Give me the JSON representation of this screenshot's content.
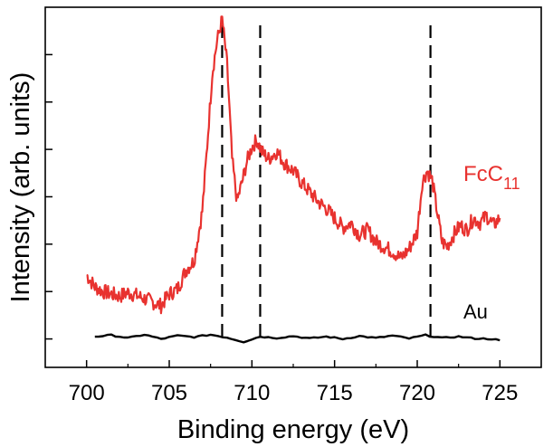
{
  "chart_data": {
    "type": "line",
    "title": "",
    "xlabel": "Binding energy (eV)",
    "ylabel": "Intensity (arb. units)",
    "xlim": [
      697.5,
      727.5
    ],
    "ylim": [
      -0.6,
      7.0
    ],
    "x_ticks": [
      700,
      705,
      710,
      715,
      720,
      725
    ],
    "x_tick_labels": [
      "700",
      "705",
      "710",
      "715",
      "720",
      "725"
    ],
    "y_ticks": [
      0,
      1,
      2,
      3,
      4,
      5,
      6
    ],
    "y_tick_labels_visible": false,
    "reference_lines_x": [
      708.2,
      710.5,
      720.8
    ],
    "series": [
      {
        "name": "FcC11",
        "label_main": "FcC",
        "label_sub": "11",
        "color": "#e8322f",
        "points": [
          [
            700.0,
            1.35
          ],
          [
            700.5,
            1.1
          ],
          [
            701.0,
            1.0
          ],
          [
            701.5,
            0.95
          ],
          [
            702.0,
            0.9
          ],
          [
            702.5,
            0.98
          ],
          [
            703.0,
            0.92
          ],
          [
            703.5,
            0.85
          ],
          [
            704.0,
            0.78
          ],
          [
            704.5,
            0.7
          ],
          [
            705.0,
            0.95
          ],
          [
            705.5,
            1.05
          ],
          [
            706.0,
            1.45
          ],
          [
            706.5,
            1.65
          ],
          [
            707.0,
            2.7
          ],
          [
            707.3,
            4.1
          ],
          [
            707.6,
            5.6
          ],
          [
            707.9,
            6.3
          ],
          [
            708.2,
            6.75
          ],
          [
            708.5,
            5.8
          ],
          [
            708.8,
            3.8
          ],
          [
            709.1,
            2.9
          ],
          [
            709.4,
            3.3
          ],
          [
            709.7,
            3.75
          ],
          [
            710.0,
            4.05
          ],
          [
            710.3,
            4.2
          ],
          [
            710.6,
            3.95
          ],
          [
            711.0,
            3.8
          ],
          [
            711.5,
            3.95
          ],
          [
            712.0,
            3.7
          ],
          [
            712.5,
            3.55
          ],
          [
            713.0,
            3.3
          ],
          [
            713.5,
            3.1
          ],
          [
            714.0,
            2.9
          ],
          [
            714.5,
            2.75
          ],
          [
            715.0,
            2.55
          ],
          [
            715.5,
            2.35
          ],
          [
            716.0,
            2.45
          ],
          [
            716.5,
            2.2
          ],
          [
            717.0,
            2.3
          ],
          [
            717.5,
            2.05
          ],
          [
            718.0,
            1.95
          ],
          [
            718.5,
            1.85
          ],
          [
            719.0,
            1.7
          ],
          [
            719.5,
            1.9
          ],
          [
            720.0,
            2.25
          ],
          [
            720.3,
            3.3
          ],
          [
            720.6,
            3.55
          ],
          [
            720.9,
            3.35
          ],
          [
            721.2,
            2.7
          ],
          [
            721.5,
            2.05
          ],
          [
            721.8,
            1.95
          ],
          [
            722.2,
            2.2
          ],
          [
            722.6,
            2.4
          ],
          [
            723.0,
            2.3
          ],
          [
            723.4,
            2.55
          ],
          [
            723.8,
            2.45
          ],
          [
            724.2,
            2.6
          ],
          [
            724.6,
            2.4
          ],
          [
            725.0,
            2.55
          ]
        ]
      },
      {
        "name": "Au",
        "label_main": "Au",
        "label_sub": "",
        "color": "#000000",
        "points": [
          [
            700.5,
            0.05
          ],
          [
            701.5,
            0.08
          ],
          [
            702.5,
            0.02
          ],
          [
            703.5,
            0.09
          ],
          [
            704.5,
            0.0
          ],
          [
            705.5,
            0.07
          ],
          [
            706.5,
            0.04
          ],
          [
            707.5,
            0.09
          ],
          [
            708.5,
            0.03
          ],
          [
            709.5,
            -0.06
          ],
          [
            710.5,
            0.05
          ],
          [
            711.5,
            0.02
          ],
          [
            712.5,
            0.06
          ],
          [
            713.5,
            0.01
          ],
          [
            714.5,
            0.05
          ],
          [
            715.5,
            0.0
          ],
          [
            716.5,
            0.06
          ],
          [
            717.5,
            0.02
          ],
          [
            718.5,
            0.07
          ],
          [
            719.5,
            0.01
          ],
          [
            720.5,
            0.08
          ],
          [
            721.5,
            0.02
          ],
          [
            722.5,
            0.05
          ],
          [
            723.5,
            0.01
          ],
          [
            724.5,
            0.0
          ],
          [
            725.0,
            -0.03
          ]
        ]
      }
    ]
  }
}
